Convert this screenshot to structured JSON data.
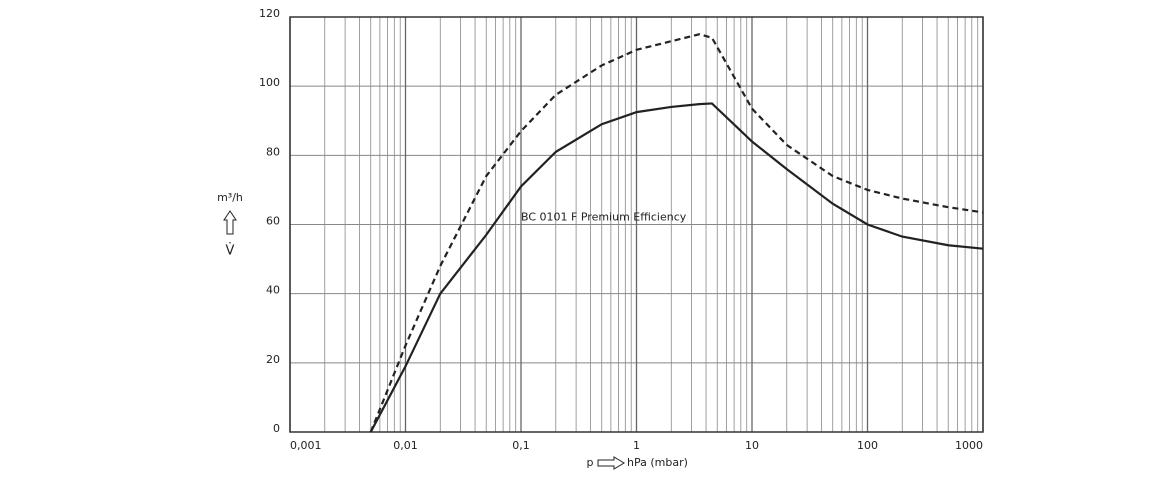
{
  "chart_data": {
    "type": "line",
    "annotation": {
      "text": "BC 0101 F Premium Efficiency",
      "x": 0.1,
      "y": 62
    },
    "y_label": "m³/h",
    "y_symbol": "V̇",
    "x_symbol": "p",
    "x_label": "hPa (mbar)",
    "x": [
      0.005,
      0.01,
      0.02,
      0.05,
      0.1,
      0.2,
      0.5,
      1,
      2,
      3.5,
      4.5,
      10,
      20,
      50,
      100,
      200,
      500,
      1000
    ],
    "series": [
      {
        "color": "#222222",
        "dash": "solid",
        "values": [
          0,
          19,
          40,
          57,
          71,
          81,
          89,
          92.5,
          94,
          94.8,
          95,
          84,
          76,
          66,
          60,
          56.5,
          54,
          53
        ]
      },
      {
        "color": "#222222",
        "dash": "dashed",
        "values": [
          0,
          25,
          48,
          74,
          87,
          97.5,
          106,
          110.5,
          113,
          115,
          114,
          93.5,
          83,
          74,
          70,
          67.5,
          65,
          63.5
        ]
      }
    ],
    "xlog": true,
    "minor_grid": true,
    "grid": true,
    "xlim": [
      0.001,
      1000
    ],
    "xticks": [
      {
        "value": 0.001,
        "label": "0,001"
      },
      {
        "value": 0.01,
        "label": "0,01"
      },
      {
        "value": 0.1,
        "label": "0,1"
      },
      1,
      10,
      100,
      1000
    ],
    "ylim": [
      0,
      120
    ],
    "yticks": [
      0,
      20,
      40,
      60,
      80,
      100,
      120
    ]
  }
}
